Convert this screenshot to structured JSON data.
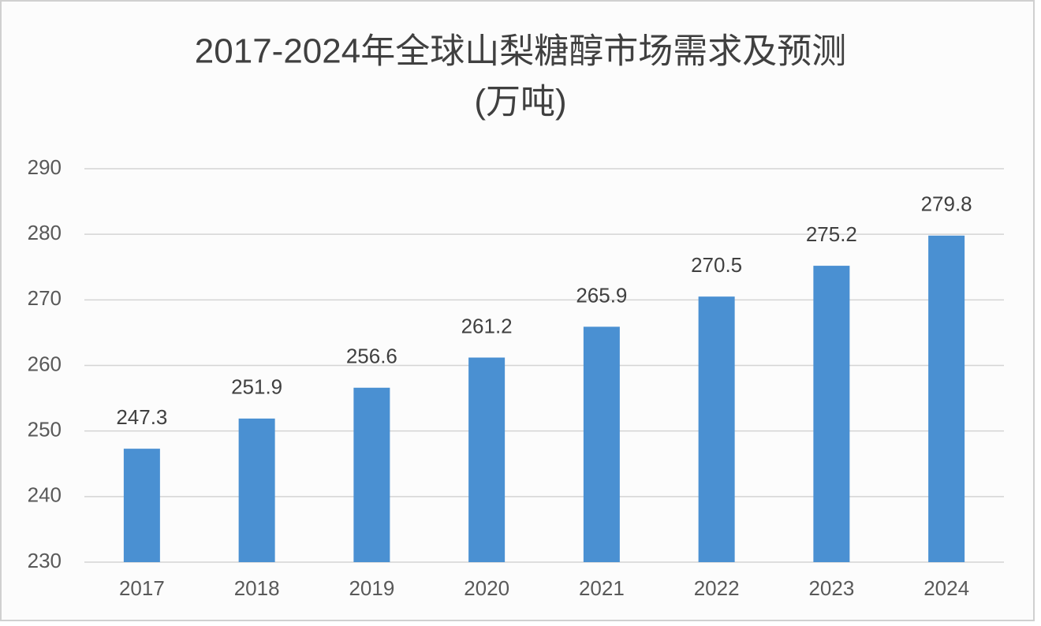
{
  "chart_data": {
    "type": "bar",
    "title": "2017-2024年全球山梨糖醇市场需求及预测",
    "subtitle": "(万吨)",
    "categories": [
      "2017",
      "2018",
      "2019",
      "2020",
      "2021",
      "2022",
      "2023",
      "2024"
    ],
    "values": [
      247.3,
      251.9,
      256.6,
      261.2,
      265.9,
      270.5,
      275.2,
      279.8
    ],
    "color": "#4a90d2",
    "ylim": [
      230,
      290
    ],
    "yticks": [
      230,
      240,
      250,
      260,
      270,
      280,
      290
    ],
    "grid": true
  }
}
